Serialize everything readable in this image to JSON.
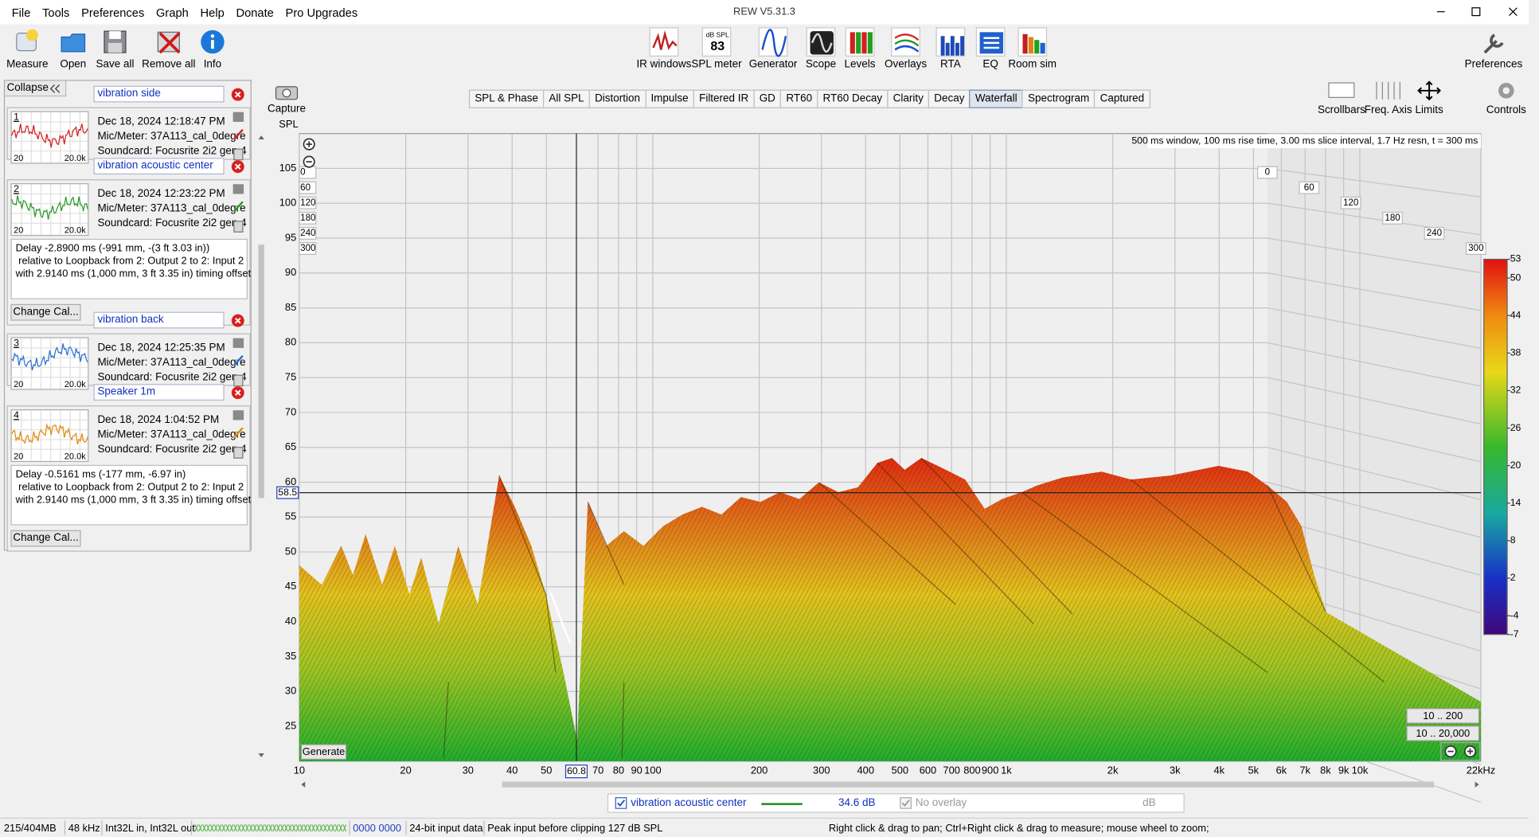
{
  "window": {
    "title": "REW V5.31.3"
  },
  "menu": [
    "File",
    "Tools",
    "Preferences",
    "Graph",
    "Help",
    "Donate",
    "Pro Upgrades"
  ],
  "toolbar_left": [
    "Measure",
    "Open",
    "Save all",
    "Remove all",
    "Info"
  ],
  "toolbar_center": [
    "IR windows",
    "SPL meter",
    "Generator",
    "Scope",
    "Levels",
    "Overlays",
    "RTA",
    "EQ",
    "Room sim"
  ],
  "spl_icon": {
    "unit": "dB SPL",
    "reading": "83"
  },
  "toolbar_right": "Preferences",
  "capture": "Capture",
  "tabs": [
    "SPL & Phase",
    "All SPL",
    "Distortion",
    "Impulse",
    "Filtered IR",
    "GD",
    "RT60",
    "RT60 Decay",
    "Clarity",
    "Decay",
    "Waterfall",
    "Spectrogram",
    "Captured"
  ],
  "active_tab": 10,
  "view_controls": [
    "Scrollbars",
    "Freq. Axis",
    "Limits",
    "Controls"
  ],
  "panel": {
    "collapse": "Collapse",
    "measurements": [
      {
        "name": "vibration side",
        "number": 1,
        "date": "Dec 18, 2024 12:18:47 PM",
        "mic": "Mic/Meter: 37A113_cal_0degre",
        "soundcard": "Soundcard: Focusrite 2i2 gen 4",
        "range": [
          "20",
          "20.0k"
        ],
        "color": "#d42020"
      },
      {
        "name": "vibration acoustic center",
        "number": 2,
        "date": "Dec 18, 2024 12:23:22 PM",
        "mic": "Mic/Meter: 37A113_cal_0degre",
        "soundcard": "Soundcard: Focusrite 2i2 gen 4",
        "range": [
          "20",
          "20.0k"
        ],
        "color": "#2a9a2a",
        "notes": [
          "Delay -2.8900 ms (-991 mm, -(3 ft 3.03 in))",
          " relative to Loopback from 2: Output 2 to 2: Input 2",
          "with 2.9140 ms (1,000 mm, 3 ft 3.35 in) timing offset"
        ],
        "button": "Change Cal..."
      },
      {
        "name": "vibration back",
        "number": 3,
        "date": "Dec 18, 2024 12:25:35 PM",
        "mic": "Mic/Meter: 37A113_cal_0degre",
        "soundcard": "Soundcard: Focusrite 2i2 gen 4",
        "range": [
          "20",
          "20.0k"
        ],
        "color": "#2a70d0"
      },
      {
        "name": "Speaker 1m",
        "number": 4,
        "date": "Dec 18, 2024 1:04:52 PM",
        "mic": "Mic/Meter: 37A113_cal_0degre",
        "soundcard": "Soundcard: Focusrite 2i2 gen 4",
        "range": [
          "20",
          "20.0k"
        ],
        "color": "#e08a10",
        "notes": [
          "Delay -0.5161 ms (-177 mm, -6.97 in)",
          " relative to Loopback from 2: Output 2 to 2: Input 2",
          "with 2.9140 ms (1,000 mm, 3 ft 3.35 in) timing offset"
        ],
        "button": "Change Cal..."
      }
    ]
  },
  "chart_data": {
    "type": "waterfall",
    "y_label": "SPL",
    "info": "500 ms window, 100 ms rise time, 3.00 ms slice interval, 1.7 Hz resn, t = 300 ms",
    "xlim": [
      10,
      22000
    ],
    "x_log": true,
    "xticks": [
      10,
      20,
      30,
      40,
      50,
      70,
      80,
      90,
      100,
      200,
      300,
      400,
      500,
      600,
      700,
      800,
      900,
      {
        "value": 1000,
        "label": "1k"
      },
      {
        "value": 2000,
        "label": "2k"
      },
      {
        "value": 3000,
        "label": "3k"
      },
      {
        "value": 4000,
        "label": "4k"
      },
      {
        "value": 5000,
        "label": "5k"
      },
      {
        "value": 6000,
        "label": "6k"
      },
      {
        "value": 7000,
        "label": "7k"
      },
      {
        "value": 8000,
        "label": "8k"
      },
      {
        "value": 9000,
        "label": "9k"
      },
      {
        "value": 10000,
        "label": "10k"
      },
      {
        "value": 22000,
        "label": "22kHz"
      }
    ],
    "ylim": [
      20,
      110
    ],
    "yticks": [
      25,
      30,
      35,
      40,
      45,
      50,
      55,
      60,
      65,
      70,
      75,
      80,
      85,
      90,
      95,
      100,
      105
    ],
    "grid": true,
    "time_labels": [
      0,
      60,
      120,
      180,
      240,
      300
    ],
    "cursor": {
      "x": 60.8,
      "y": 58.5
    },
    "colorbar": {
      "lim": [
        -7,
        53
      ],
      "ticks": [
        53,
        50,
        44,
        38,
        32,
        26,
        20,
        14,
        8,
        2,
        -4,
        -7
      ]
    },
    "buttons": [
      "Generate",
      "10 .. 200",
      "10 .. 20,000"
    ]
  },
  "legend": {
    "name": "vibration acoustic center",
    "level": "34.6 dB",
    "color": "#1a8a1a",
    "overlay": "No overlay",
    "overlay_unit": "dB"
  },
  "status": [
    "215/404MB",
    "48 kHz",
    "Int32L in, Int32L out",
    "0000 0000",
    "24-bit input data",
    "Peak input before clipping 127 dB SPL",
    "Right click & drag to pan; Ctrl+Right click & drag to measure; mouse wheel to zoom;"
  ]
}
